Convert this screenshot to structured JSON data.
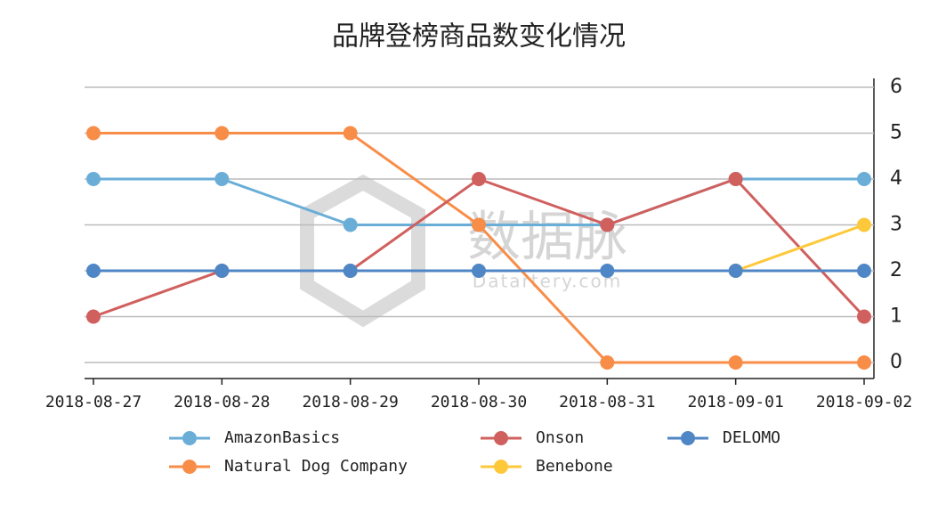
{
  "chart_data": {
    "type": "line",
    "title": "品牌登榜商品数变化情况",
    "categories": [
      "2018-08-27",
      "2018-08-28",
      "2018-08-29",
      "2018-08-30",
      "2018-08-31",
      "2018-09-01",
      "2018-09-02"
    ],
    "series": [
      {
        "name": "AmazonBasics",
        "color": "#6aaed8",
        "values": [
          4,
          4,
          3,
          3,
          3,
          4,
          4
        ]
      },
      {
        "name": "Natural Dog Company",
        "color": "#f88d48",
        "values": [
          5,
          5,
          5,
          3,
          0,
          0,
          0
        ]
      },
      {
        "name": "Onson",
        "color": "#d0605e",
        "values": [
          1,
          2,
          2,
          4,
          3,
          4,
          1
        ]
      },
      {
        "name": "Benebone",
        "color": "#fdc93a",
        "values": [
          null,
          null,
          null,
          null,
          null,
          2,
          3
        ]
      },
      {
        "name": "DELOMO",
        "color": "#4f86c6",
        "values": [
          2,
          2,
          2,
          2,
          2,
          2,
          2
        ]
      }
    ],
    "ylim": [
      0,
      6
    ],
    "yticks": [
      0,
      1,
      2,
      3,
      4,
      5,
      6
    ],
    "grid": true,
    "watermark": {
      "title": "数据脉",
      "subtitle": "Datartery.com"
    }
  }
}
